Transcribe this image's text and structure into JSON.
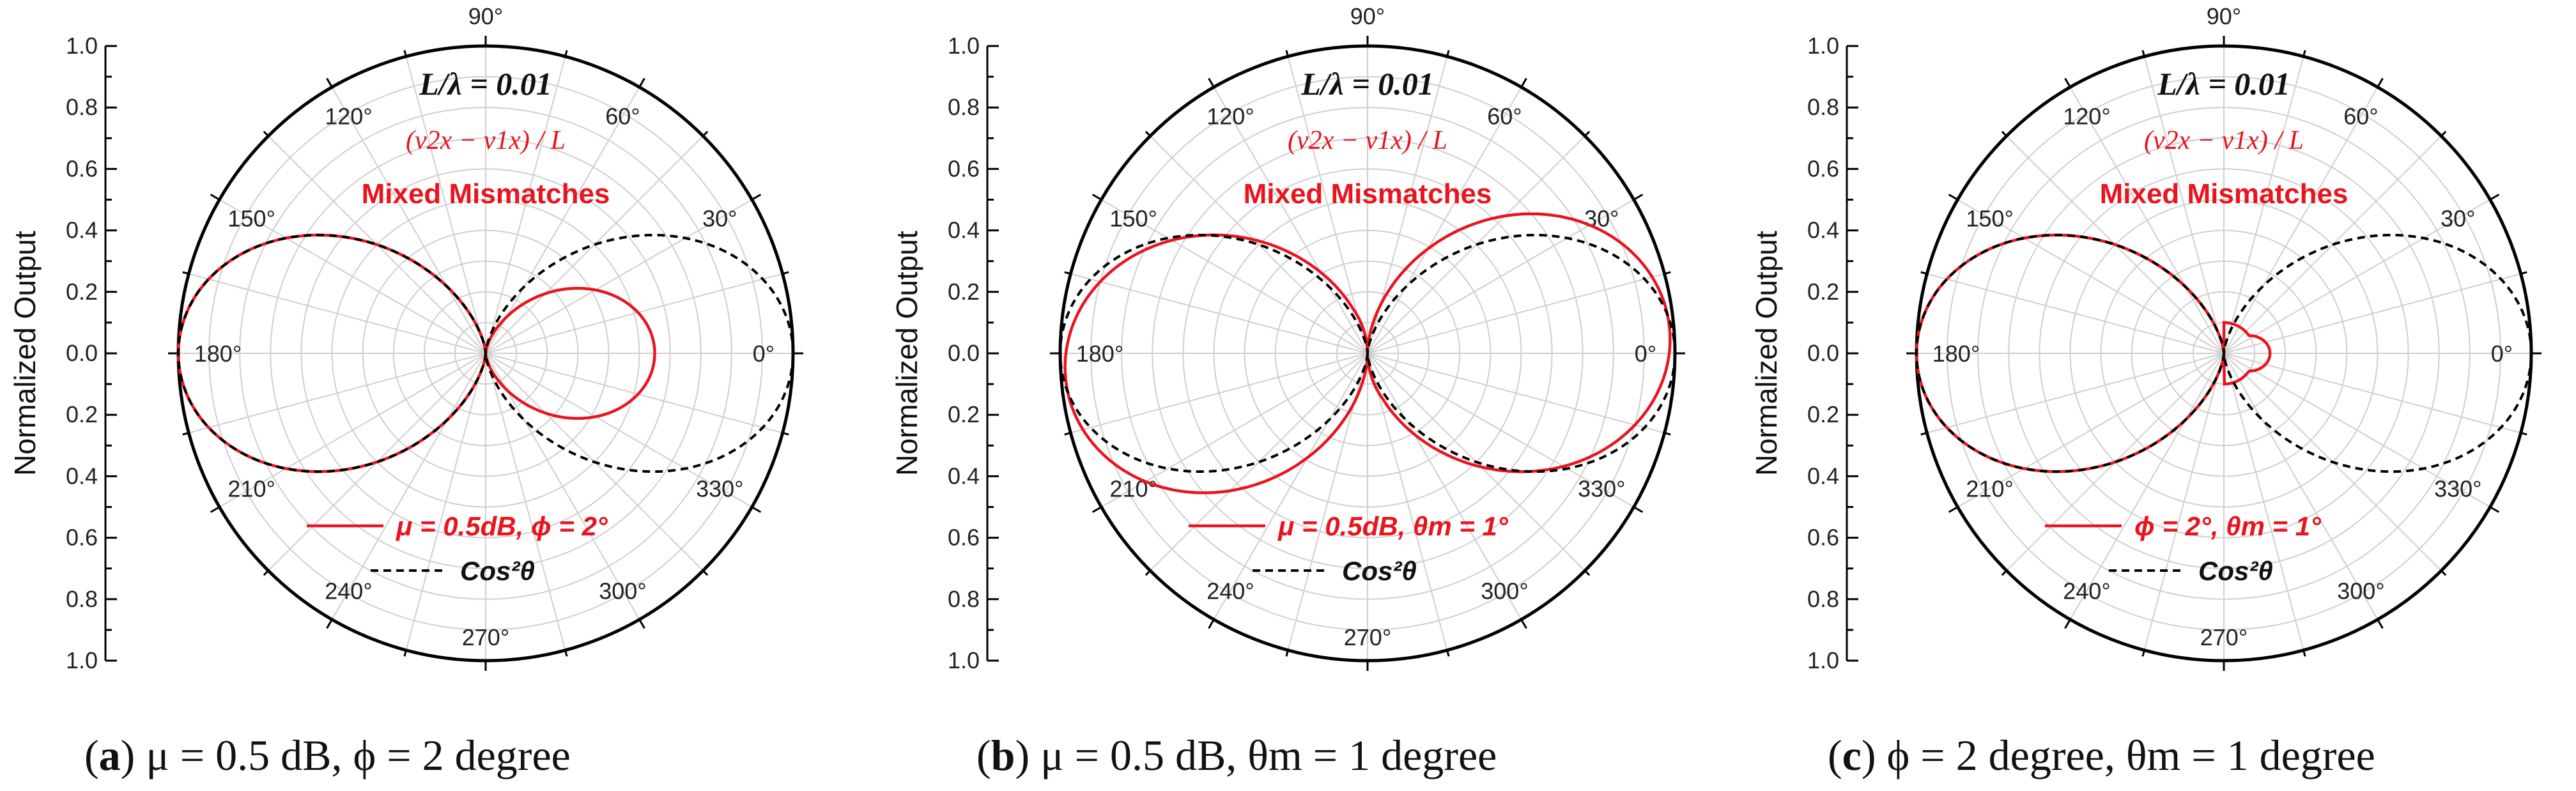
{
  "colors": {
    "red": "#e8141e",
    "black": "#000000",
    "grid": "#cfcfcf"
  },
  "chart_data": [
    {
      "type": "polar-line",
      "panel_label": "a",
      "caption_rest": "μ = 0.5 dB, ϕ = 2 degree",
      "ylabel": "Normalized Output",
      "r_range": [
        0,
        1.0
      ],
      "yticks_upper": [
        "1.0",
        "0.8",
        "0.6",
        "0.4",
        "0.2",
        "0.0"
      ],
      "yticks_lower": [
        "0.2",
        "0.4",
        "0.6",
        "0.8",
        "1.0"
      ],
      "angle_labels": [
        "0°",
        "30°",
        "60°",
        "90°",
        "120°",
        "150°",
        "180°",
        "210°",
        "240°",
        "270°",
        "300°",
        "330°"
      ],
      "annotation_l": "L/λ = 0.01",
      "annotation_formula": "(v2x − v1x) / L",
      "annotation_title": "Mixed Mismatches",
      "series": [
        {
          "name": "μ = 0.5dB, ϕ = 2°",
          "style": "red-solid",
          "model": {
            "kind": "cos2",
            "right": 0.55,
            "left": 1.0,
            "phase_deg": 0
          }
        },
        {
          "name": "Cos²θ",
          "style": "black-dashed",
          "model": {
            "kind": "cos2",
            "right": 1.0,
            "left": 1.0,
            "phase_deg": 0
          }
        }
      ]
    },
    {
      "type": "polar-line",
      "panel_label": "b",
      "caption_rest": "μ = 0.5 dB, θm = 1 degree",
      "ylabel": "Normalized Output",
      "r_range": [
        0,
        1.0
      ],
      "yticks_upper": [
        "1.0",
        "0.8",
        "0.6",
        "0.4",
        "0.2",
        "0.0"
      ],
      "yticks_lower": [
        "0.2",
        "0.4",
        "0.6",
        "0.8",
        "1.0"
      ],
      "angle_labels": [
        "0°",
        "30°",
        "60°",
        "90°",
        "120°",
        "150°",
        "180°",
        "210°",
        "240°",
        "270°",
        "300°",
        "330°"
      ],
      "annotation_l": "L/λ = 0.01",
      "annotation_formula": "(v2x − v1x) / L",
      "annotation_title": "Mixed Mismatches",
      "series": [
        {
          "name": "μ = 0.5dB, θm = 1°",
          "style": "red-solid",
          "model": {
            "kind": "tilt",
            "right": 1.0,
            "left": 1.0,
            "phase_deg": 18
          }
        },
        {
          "name": "Cos²θ",
          "style": "black-dashed",
          "model": {
            "kind": "cos2",
            "right": 1.0,
            "left": 1.0,
            "phase_deg": 0
          }
        }
      ]
    },
    {
      "type": "polar-line",
      "panel_label": "c",
      "caption_rest": "ϕ = 2 degree, θm = 1 degree",
      "ylabel": "Normalized Output",
      "r_range": [
        0,
        1.0
      ],
      "yticks_upper": [
        "1.0",
        "0.8",
        "0.6",
        "0.4",
        "0.2",
        "0.0"
      ],
      "yticks_lower": [
        "0.2",
        "0.4",
        "0.6",
        "0.8",
        "1.0"
      ],
      "angle_labels": [
        "0°",
        "30°",
        "60°",
        "90°",
        "120°",
        "150°",
        "180°",
        "210°",
        "240°",
        "270°",
        "300°",
        "330°"
      ],
      "annotation_l": "L/λ = 0.01",
      "annotation_formula": "(v2x − v1x) / L",
      "annotation_title": "Mixed Mismatches",
      "series": [
        {
          "name": "ϕ = 2°, θm = 1°",
          "style": "red-solid",
          "model": {
            "kind": "cos2_floor",
            "right": 0.15,
            "left": 1.0,
            "phase_deg": 0,
            "floor": 0.1
          }
        },
        {
          "name": "Cos²θ",
          "style": "black-dashed",
          "model": {
            "kind": "cos2",
            "right": 1.0,
            "left": 1.0,
            "phase_deg": 0
          }
        }
      ]
    }
  ]
}
